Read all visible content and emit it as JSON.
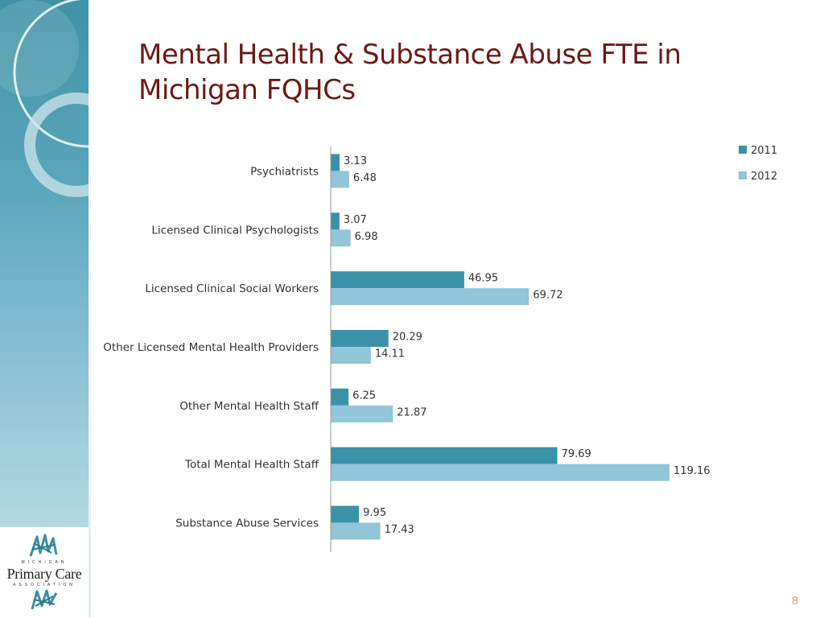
{
  "slide": {
    "title": "Mental Health & Substance Abuse FTE in Michigan FQHCs",
    "page_number": "8"
  },
  "logo": {
    "top_text": "MICHIGAN",
    "main_text": "Primary Care",
    "bottom_text": "ASSOCIATION"
  },
  "colors": {
    "series_2011": "#3b93a9",
    "series_2012": "#92c6d8",
    "title": "#6b1a17",
    "sidebar": "#5aa6ba"
  },
  "chart_data": {
    "type": "bar",
    "orientation": "horizontal",
    "categories": [
      "Psychiatrists",
      "Licensed Clinical Psychologists",
      "Licensed Clinical Social Workers",
      "Other Licensed Mental Health Providers",
      "Other Mental Health Staff",
      "Total Mental Health Staff",
      "Substance Abuse Services"
    ],
    "series": [
      {
        "name": "2011",
        "values": [
          3.13,
          3.07,
          46.95,
          20.29,
          6.25,
          79.69,
          9.95
        ]
      },
      {
        "name": "2012",
        "values": [
          6.48,
          6.98,
          69.72,
          14.11,
          21.87,
          119.16,
          17.43
        ]
      }
    ],
    "value_labels": {
      "2011": [
        "3.13",
        "3.07",
        "46.95",
        "20.29",
        "6.25",
        "79.69",
        "9.95"
      ],
      "2012": [
        "6.48",
        "6.98",
        "69.72",
        "14.11",
        "21.87",
        "119.16",
        "17.43"
      ]
    },
    "xlim": [
      0,
      120
    ],
    "grid": false,
    "legend": "top-right"
  }
}
